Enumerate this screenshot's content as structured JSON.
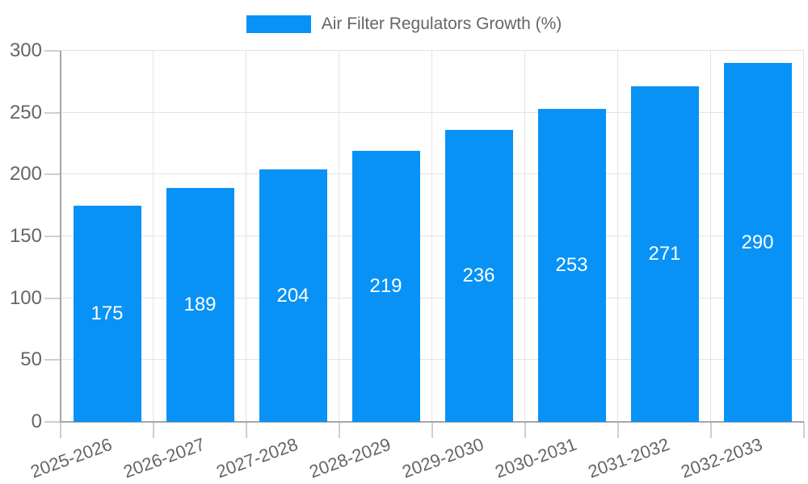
{
  "legend": {
    "label": "Air Filter Regulators Growth (%)"
  },
  "chart_data": {
    "type": "bar",
    "title": "Air Filter Regulators Growth (%)",
    "series_name": "Air Filter Regulators Growth (%)",
    "categories": [
      "2025-2026",
      "2026-2027",
      "2027-2028",
      "2028-2029",
      "2029-2030",
      "2030-2031",
      "2031-2032",
      "2032-2033"
    ],
    "values": [
      175,
      189,
      204,
      219,
      236,
      253,
      271,
      290
    ],
    "xlabel": "",
    "ylabel": "",
    "ylim": [
      0,
      300
    ],
    "yticks": [
      0,
      50,
      100,
      150,
      200,
      250,
      300
    ],
    "grid": true,
    "legend_position": "top",
    "x_label_rotation_deg": -20,
    "bar_color": "#0892f5",
    "value_label_color": "#ffffff",
    "text_color": "#666666",
    "grid_color": "#e3e3e3",
    "axis_color": "#a6a6a6"
  }
}
